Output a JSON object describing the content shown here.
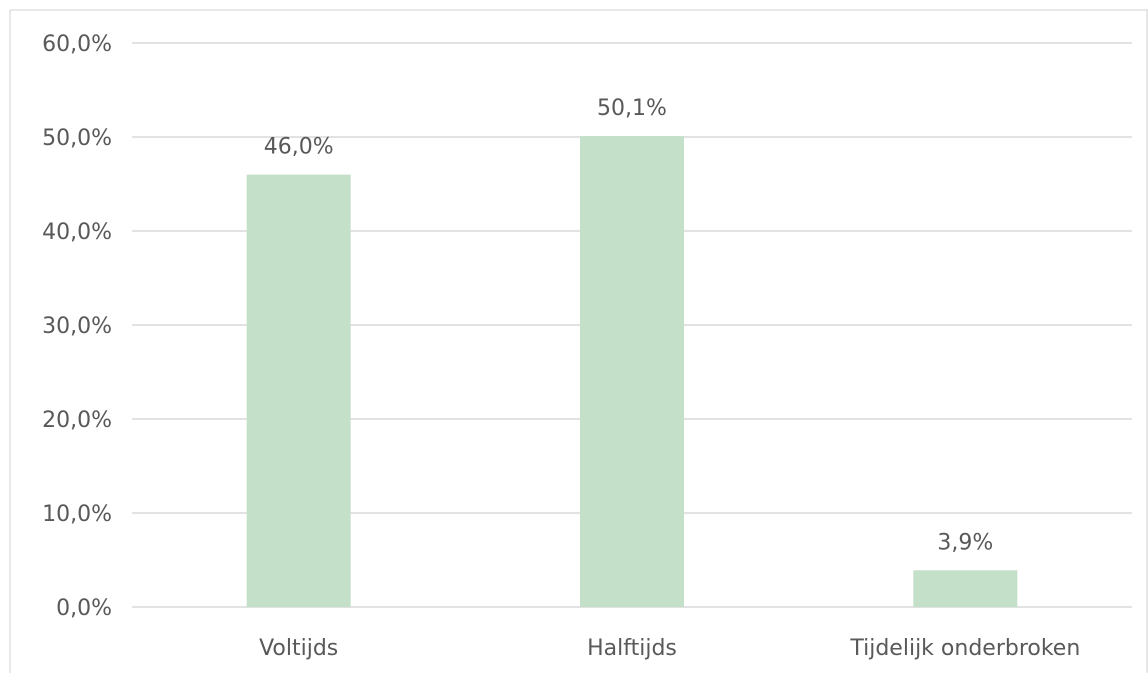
{
  "chart_data": {
    "type": "bar",
    "title": "",
    "xlabel": "",
    "ylabel": "",
    "categories": [
      "Voltijds",
      "Halftijds",
      "Tijdelijk onderbroken"
    ],
    "values": [
      46.0,
      50.1,
      3.9
    ],
    "value_labels": [
      "46,0%",
      "50,1%",
      "3,9%"
    ],
    "ylim": [
      0,
      60
    ],
    "y_ticks": [
      0,
      10,
      20,
      30,
      40,
      50,
      60
    ],
    "y_tick_labels": [
      "0,0%",
      "10,0%",
      "20,0%",
      "30,0%",
      "40,0%",
      "50,0%",
      "60,0%"
    ],
    "grid": true,
    "legend": "none",
    "bar_color": "#c5e0c9",
    "gridline_color": "#d9d9d9",
    "text_color": "#595959"
  }
}
